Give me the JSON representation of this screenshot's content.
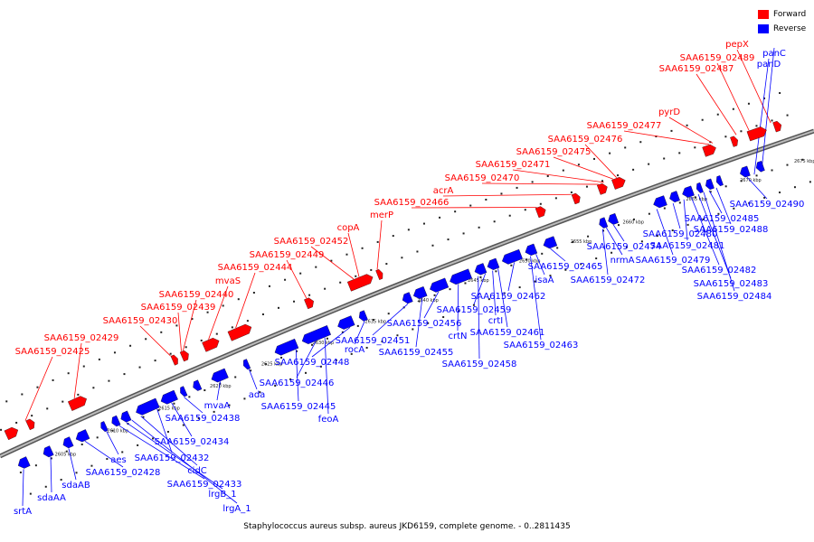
{
  "legend": {
    "forward_label": "Forward",
    "reverse_label": "Reverse"
  },
  "colors": {
    "forward": "#ff0000",
    "reverse": "#0000ff",
    "backbone": "#888888",
    "leader_forward": "#ff0000",
    "leader_reverse": "#0000ff"
  },
  "caption": "Staphylococcus aureus subsp. aureus JKD6159, complete genome. - 0..2811435",
  "ticks": [
    "2605 kbp",
    "2610 kbp",
    "2615 kbp",
    "2620 kbp",
    "2625 kbp",
    "2630 kbp",
    "2635 kbp",
    "2640 kbp",
    "2645 kbp",
    "2650 kbp",
    "2655 kbp",
    "2660 kbp",
    "2665 kbp",
    "2670 kbp",
    "2675 kbp"
  ],
  "forward_labels": [
    "SAA6159_02425",
    "SAA6159_02429",
    "SAA6159_02430",
    "SAA6159_02439",
    "SAA6159_02440",
    "mvaS",
    "SAA6159_02444",
    "SAA6159_02449",
    "SAA6159_02452",
    "copA",
    "merP",
    "SAA6159_02466",
    "acrA",
    "SAA6159_02470",
    "SAA6159_02471",
    "SAA6159_02475",
    "SAA6159_02476",
    "SAA6159_02477",
    "pyrD",
    "SAA6159_02487",
    "SAA6159_02489",
    "pepX"
  ],
  "reverse_labels": [
    "srtA",
    "sdaAA",
    "sdaAB",
    "SAA6159_02428",
    "aes",
    "SAA6159_02433",
    "lrgB_1",
    "lrgA_1",
    "cidC",
    "SAA6159_02432",
    "SAA6159_02434",
    "SAA6159_02438",
    "mvaA",
    "ada",
    "SAA6159_02445",
    "feoA",
    "SAA6159_02446",
    "SAA6159_02448",
    "rocA",
    "SAA6159_02451",
    "SAA6159_02455",
    "SAA6159_02456",
    "crtN",
    "SAA6159_02458",
    "SAA6159_02459",
    "crtI",
    "SAA6159_02461",
    "SAA6159_02462",
    "SAA6159_02463",
    "isaA",
    "SAA6159_02465",
    "SAA6159_02472",
    "nrmA",
    "SAA6159_02474",
    "SAA6159_02479",
    "SAA6159_02480",
    "SAA6159_02481",
    "SAA6159_02482",
    "SAA6159_02483",
    "SAA6159_02484",
    "SAA6159_02485",
    "SAA6159_02488",
    "SAA6159_02490",
    "panD",
    "panC"
  ]
}
